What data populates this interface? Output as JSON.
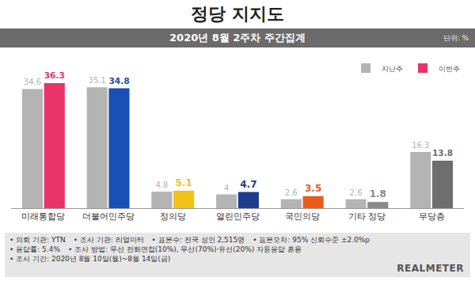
{
  "chart_data": {
    "type": "bar",
    "title": "정당 지지도",
    "subtitle": "2020년 8월 2주차 주간집계",
    "unit_label": "단위: %",
    "categories": [
      "미래통합당",
      "더불어민주당",
      "정의당",
      "열린민주당",
      "국민의당",
      "기타 정당",
      "무당층"
    ],
    "series": [
      {
        "name": "지난주",
        "color": "#b4b4b4",
        "values": [
          34.6,
          35.1,
          4.8,
          4.0,
          2.6,
          2.6,
          16.3
        ]
      },
      {
        "name": "이번주",
        "colors": [
          "#e8336b",
          "#1a4fb5",
          "#f2c318",
          "#1f3b8c",
          "#ea5b1b",
          "#8a8a8a",
          "#6e6e6e"
        ],
        "values": [
          36.3,
          34.8,
          5.1,
          4.7,
          3.5,
          1.8,
          13.8
        ]
      }
    ],
    "ylim": [
      0,
      40
    ],
    "tick_labels": "x",
    "data_labels": true,
    "legend": "top right",
    "grid": false
  },
  "footer": {
    "items": [
      "• 의뢰 기관: YTN",
      "• 조사 기관: 리얼미터",
      "• 표본수: 전국 성인 2,515명",
      "• 표본오차: 95% 신뢰수준 ±2.0%p",
      "• 응답률: 5.4%",
      "• 조사 방법: 무선 전화면접(10%), 무선(70%)·유선(20%) 자동응답 혼용",
      "• 조사 기간: 2020년 8월 10일(월)~8월 14일(금)"
    ],
    "logo": "REALMETER"
  }
}
